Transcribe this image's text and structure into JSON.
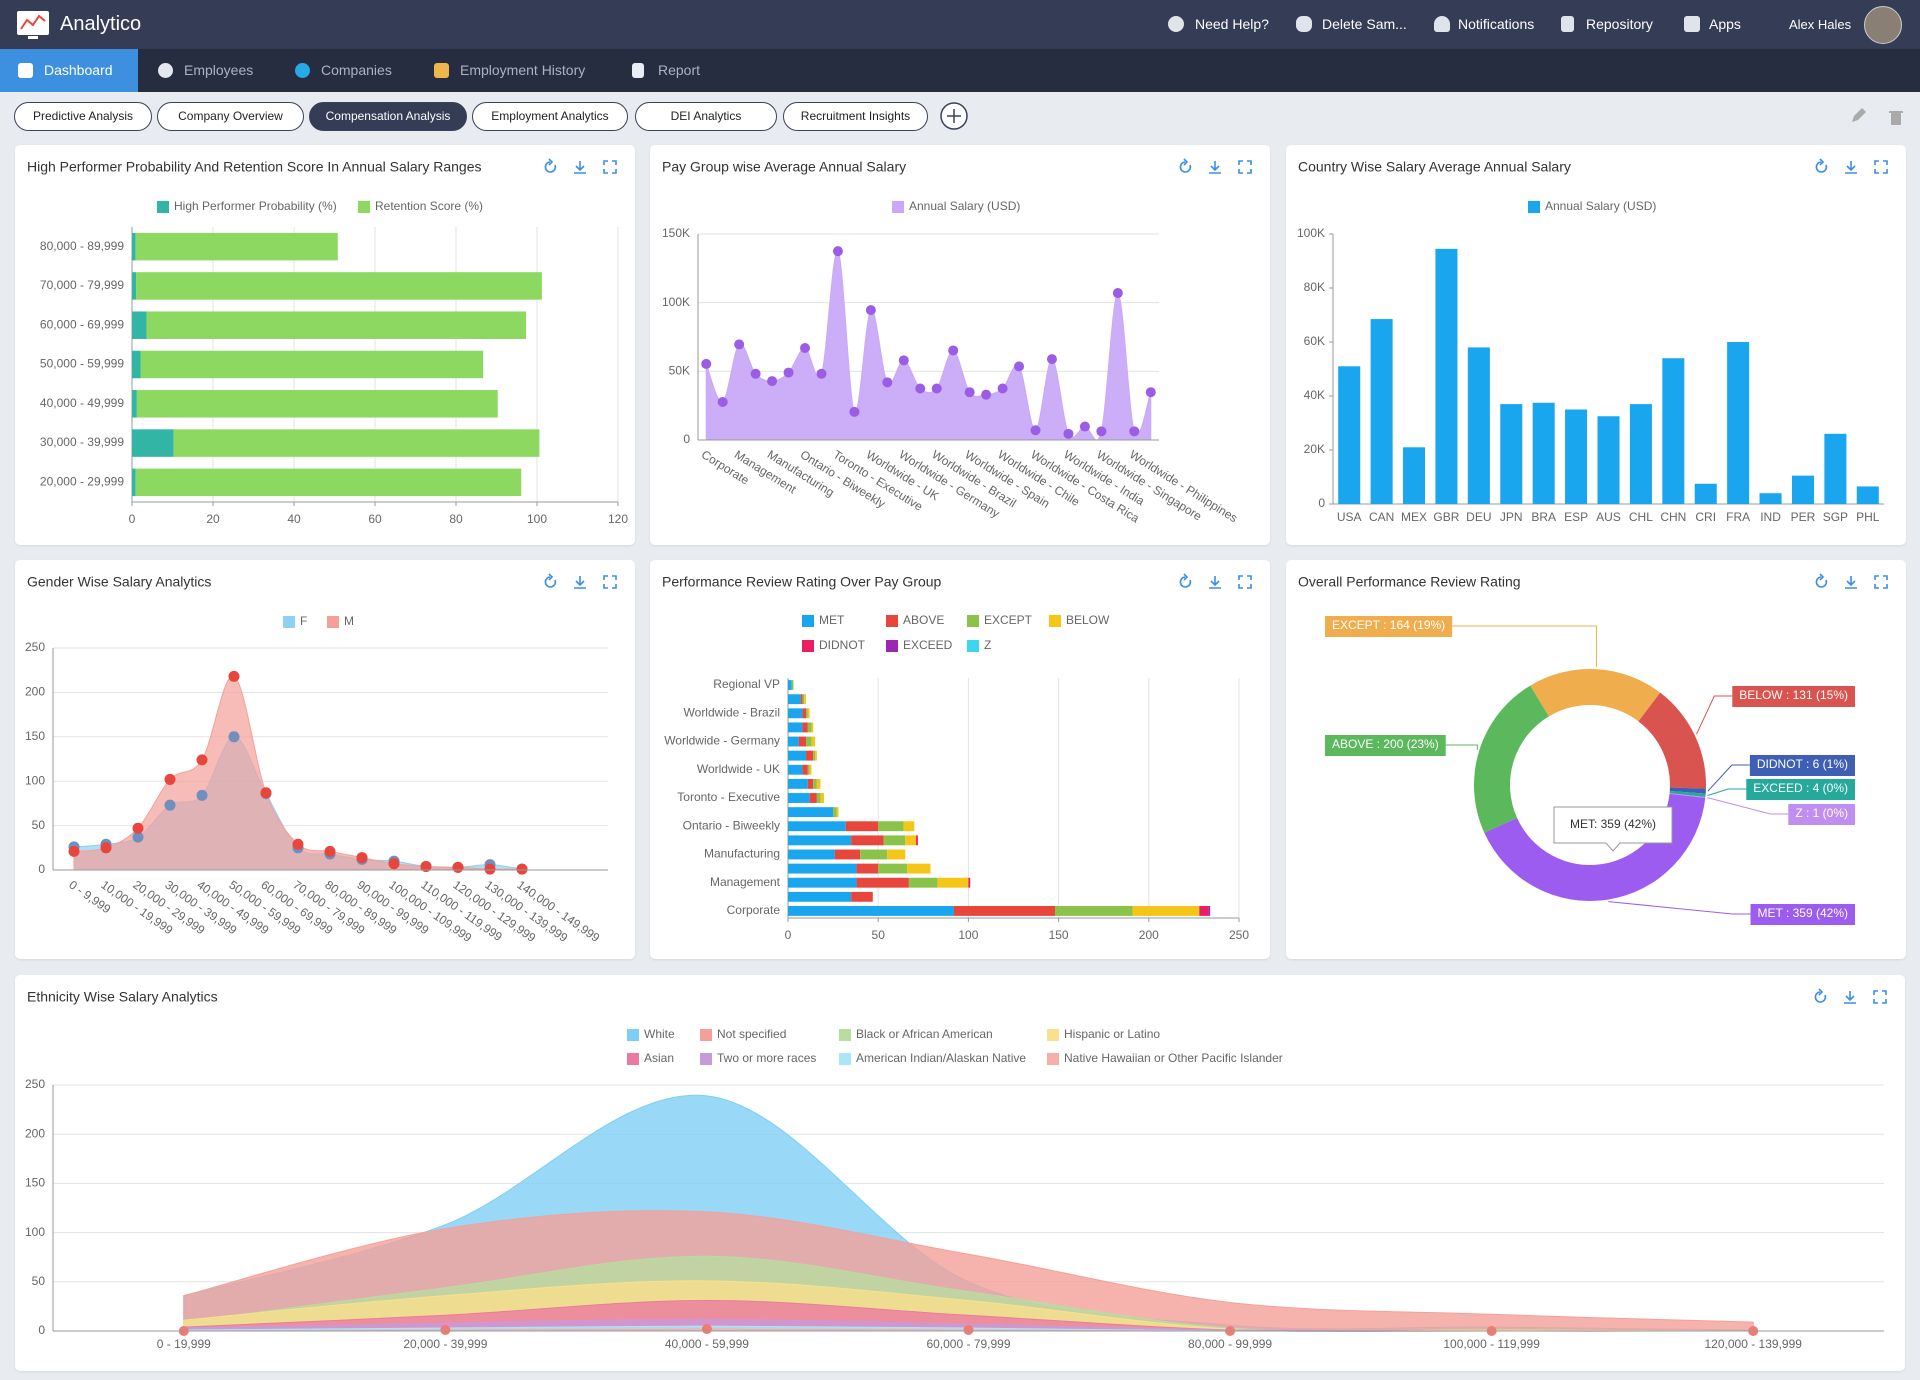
{
  "header": {
    "brand": "Analytico",
    "items": [
      "Need Help?",
      "Delete Sam...",
      "Notifications",
      "Repository",
      "Apps"
    ],
    "user": "Alex Hales"
  },
  "nav": {
    "items": [
      "Dashboard",
      "Employees",
      "Companies",
      "Employment History",
      "Report"
    ],
    "active": 0
  },
  "tabs": {
    "items": [
      "Predictive Analysis",
      "Company Overview",
      "Compensation Analysis",
      "Employment Analytics",
      "DEI Analytics",
      "Recruitment Insights"
    ],
    "active": 2
  },
  "chart_data": [
    {
      "type": "bar",
      "orientation": "horizontal",
      "stacked": true,
      "title": "High Performer Probability And Retention Score In Annual Salary Ranges",
      "categories": [
        "80,000 - 89,999",
        "70,000 - 79,999",
        "60,000 - 69,999",
        "50,000 - 59,999",
        "40,000 - 49,999",
        "30,000 - 39,999",
        "20,000 - 29,999"
      ],
      "series": [
        {
          "name": "High Performer Probability (%)",
          "color": "#33b5a5",
          "values": [
            0.9,
            1,
            3.6,
            2.1,
            1.2,
            10.3,
            0.9
          ]
        },
        {
          "name": "Retention Score (%)",
          "color": "#8cd860",
          "values": [
            49.9,
            100.2,
            93.7,
            84.6,
            89.1,
            90.3,
            95.2
          ]
        }
      ],
      "xlim": [
        0,
        120
      ],
      "xticks": [
        0,
        20,
        40,
        60,
        80,
        100,
        120
      ],
      "grid": "x"
    },
    {
      "type": "area",
      "title": "Pay Group wise Average Annual Salary",
      "categories": [
        "Corporate",
        null,
        "Management",
        null,
        "Manufacturing",
        null,
        "Ontario - Biweekly",
        null,
        "Toronto - Executive",
        null,
        "Worldwide - UK",
        null,
        "Worldwide - Germany",
        null,
        "Worldwide - Brazil",
        null,
        "Worldwide - Spain",
        null,
        "Worldwide - Chile",
        null,
        "Worldwide - Costa Rica",
        null,
        "Worldwide - India",
        null,
        "Worldwide - Singapore",
        null,
        "Worldwide - Philippines",
        null
      ],
      "series": [
        {
          "name": "Annual Salary (USD)",
          "color": "#c9a9f7",
          "markers": true,
          "marker_color": "#9b5de5",
          "values": [
            55400,
            27700,
            69600,
            48200,
            42900,
            49100,
            67000,
            48200,
            137500,
            20500,
            94600,
            42000,
            58000,
            37500,
            37500,
            65200,
            34800,
            33000,
            37500,
            53600,
            7100,
            58900,
            4500,
            9800,
            6300,
            107000,
            6300,
            34800
          ]
        }
      ],
      "ylim": [
        0,
        150000
      ],
      "yticks": [
        0,
        {
          "value": 50000,
          "label": "50K"
        },
        {
          "value": 100000,
          "label": "100K"
        },
        {
          "value": 150000,
          "label": "150K"
        }
      ],
      "grid": "y"
    },
    {
      "type": "bar",
      "title": "Country Wise Salary Average Annual Salary",
      "categories": [
        "USA",
        "CAN",
        "MEX",
        "GBR",
        "DEU",
        "JPN",
        "BRA",
        "ESP",
        "AUS",
        "CHL",
        "CHN",
        "CRI",
        "FRA",
        "IND",
        "PER",
        "SGP",
        "PHL"
      ],
      "series": [
        {
          "name": "Annual Salary (USD)",
          "color": "#1aa6ee",
          "values": [
            51000,
            68500,
            21000,
            94500,
            58000,
            37000,
            37500,
            35000,
            32500,
            37000,
            54000,
            7500,
            60000,
            4000,
            10500,
            26000,
            6500
          ]
        }
      ],
      "ylim": [
        0,
        100000
      ],
      "yticks": [
        0,
        {
          "value": 20000,
          "label": "20K"
        },
        {
          "value": 40000,
          "label": "40K"
        },
        {
          "value": 60000,
          "label": "60K"
        },
        {
          "value": 80000,
          "label": "80K"
        },
        {
          "value": 100000,
          "label": "100K"
        }
      ],
      "grid": false
    },
    {
      "type": "area",
      "title": "Gender Wise Salary Analytics",
      "categories": [
        "0 - 9,999",
        "10,000 - 19,999",
        "20,000 - 29,999",
        "30,000 - 39,999",
        "40,000 - 49,999",
        "50,000 - 59,999",
        "60,000 - 69,999",
        "70,000 - 79,999",
        "80,000 - 89,999",
        "90,000 - 99,999",
        "100,000 - 109,999",
        "110,000 - 119,999",
        "120,000 - 129,999",
        "130,000 - 139,999",
        "140,000 - 149,999"
      ],
      "series": [
        {
          "name": "F",
          "color": "#8fd0f5",
          "markers": true,
          "marker_color": "#6f8fbf",
          "values": [
            26,
            29,
            37,
            73,
            84,
            150,
            86,
            25,
            18,
            12,
            10,
            4,
            3,
            6,
            1
          ]
        },
        {
          "name": "M",
          "color": "#f4a099",
          "markers": true,
          "marker_color": "#e8453c",
          "values": [
            21,
            25,
            47,
            102,
            124,
            218,
            87,
            29,
            21,
            14,
            7,
            4,
            3,
            1,
            1
          ]
        }
      ],
      "ylim": [
        0,
        250
      ],
      "yticks": [
        0,
        50,
        100,
        150,
        200,
        250
      ],
      "grid": "y"
    },
    {
      "type": "bar",
      "orientation": "horizontal",
      "stacked": true,
      "title": "Performance Review Rating Over Pay Group",
      "categories": [
        "Regional VP",
        null,
        "Worldwide - Brazil",
        null,
        "Worldwide - Germany",
        null,
        "Worldwide - UK",
        null,
        "Toronto - Executive",
        null,
        "Ontario - Biweekly",
        null,
        "Manufacturing",
        null,
        "Management",
        null,
        "Corporate"
      ],
      "series": [
        {
          "name": "MET",
          "color": "#1aa6ee",
          "values": [
            2,
            7,
            8,
            8,
            6,
            10,
            8,
            11,
            12,
            25,
            32,
            35,
            26,
            38,
            38,
            35,
            92
          ]
        },
        {
          "name": "ABOVE",
          "color": "#e8453c",
          "values": [
            0,
            1,
            2,
            3,
            4,
            4,
            3,
            3,
            4,
            0,
            18,
            18,
            14,
            12,
            29,
            12,
            56
          ]
        },
        {
          "name": "EXCEPT",
          "color": "#8bc34a",
          "values": [
            1,
            1,
            1,
            2,
            3,
            1,
            1,
            2,
            2,
            2,
            14,
            12,
            15,
            16,
            16,
            0,
            43
          ]
        },
        {
          "name": "BELOW",
          "color": "#f5c518",
          "values": [
            0,
            1,
            1,
            1,
            2,
            1,
            1,
            2,
            2,
            1,
            6,
            6,
            10,
            13,
            17,
            0,
            37
          ]
        },
        {
          "name": "DIDNOT",
          "color": "#e91e63",
          "values": [
            0,
            0,
            0,
            0,
            0,
            0,
            0,
            0,
            0,
            0,
            0,
            1,
            0,
            0,
            1,
            0,
            5
          ]
        },
        {
          "name": "EXCEED",
          "color": "#9c27b0",
          "values": [
            0,
            0,
            0,
            0,
            0,
            0,
            0,
            0,
            0,
            0,
            0,
            0,
            0,
            0,
            0,
            0,
            1
          ]
        },
        {
          "name": "Z",
          "color": "#3dd6f0",
          "values": [
            0,
            0,
            0,
            0,
            0,
            0,
            0,
            0,
            0,
            0,
            0,
            0,
            0,
            0,
            0,
            0,
            0
          ]
        }
      ],
      "xlim": [
        0,
        250
      ],
      "xticks": [
        0,
        50,
        100,
        150,
        200,
        250
      ],
      "grid": "x"
    },
    {
      "type": "pie",
      "donut": true,
      "title": "Overall Performance Review Rating",
      "values": [
        164,
        131,
        6,
        4,
        1,
        359,
        200
      ],
      "value_labels": [
        "EXCEPT : 164 (19%)",
        "BELOW : 131 (15%)",
        "DIDNOT : 6 (1%)",
        "EXCEED : 4 (0%)",
        "Z : 1 (0%)",
        "MET : 359 (42%)",
        "ABOVE : 200 (23%)"
      ],
      "colors": [
        "#f0ad4e",
        "#d9534f",
        "#3f5fb5",
        "#25a99b",
        "#c08ef0",
        "#9d5cf0",
        "#5cb85c"
      ],
      "tooltip": "MET: 359 (42%)"
    },
    {
      "type": "area",
      "title": "Ethnicity Wise Salary Analytics",
      "categories": [
        "0 - 19,999",
        "20,000 - 39,999",
        "40,000 - 59,999",
        "60,000 - 79,999",
        "80,000 - 99,999",
        "100,000 - 119,999",
        "120,000 - 139,999"
      ],
      "series": [
        {
          "name": "White",
          "color": "#7fcff5",
          "values": [
            36,
            108,
            239,
            50,
            6,
            4,
            1
          ]
        },
        {
          "name": "Not specified",
          "color": "#f4a09a",
          "values": [
            36,
            104,
            121,
            78,
            29,
            17,
            9
          ]
        },
        {
          "name": "Black or African American",
          "color": "#b9dca0",
          "values": [
            9,
            44,
            76,
            40,
            3,
            1,
            0
          ]
        },
        {
          "name": "Hispanic or Latino",
          "color": "#f9e08c",
          "values": [
            11,
            36,
            51,
            31,
            2,
            1,
            0
          ]
        },
        {
          "name": "Asian",
          "color": "#ec7aa0",
          "values": [
            4,
            16,
            31,
            16,
            1,
            0,
            0
          ]
        },
        {
          "name": "Two or more races",
          "color": "#c99ad8",
          "values": [
            3,
            8,
            12,
            7,
            1,
            0,
            0
          ]
        },
        {
          "name": "American Indian/Alaskan Native",
          "color": "#a9e6f7",
          "values": [
            1,
            3,
            5,
            3,
            0,
            0,
            0
          ]
        },
        {
          "name": "Native Hawaiian or Other Pacific Islander",
          "color": "#f6b0a8",
          "markers": true,
          "marker_color": "#f27a6e",
          "values": [
            0,
            1,
            2,
            1,
            0,
            0,
            0
          ]
        }
      ],
      "ylim": [
        0,
        250
      ],
      "yticks": [
        0,
        50,
        100,
        150,
        200,
        250
      ],
      "grid": "y"
    }
  ]
}
